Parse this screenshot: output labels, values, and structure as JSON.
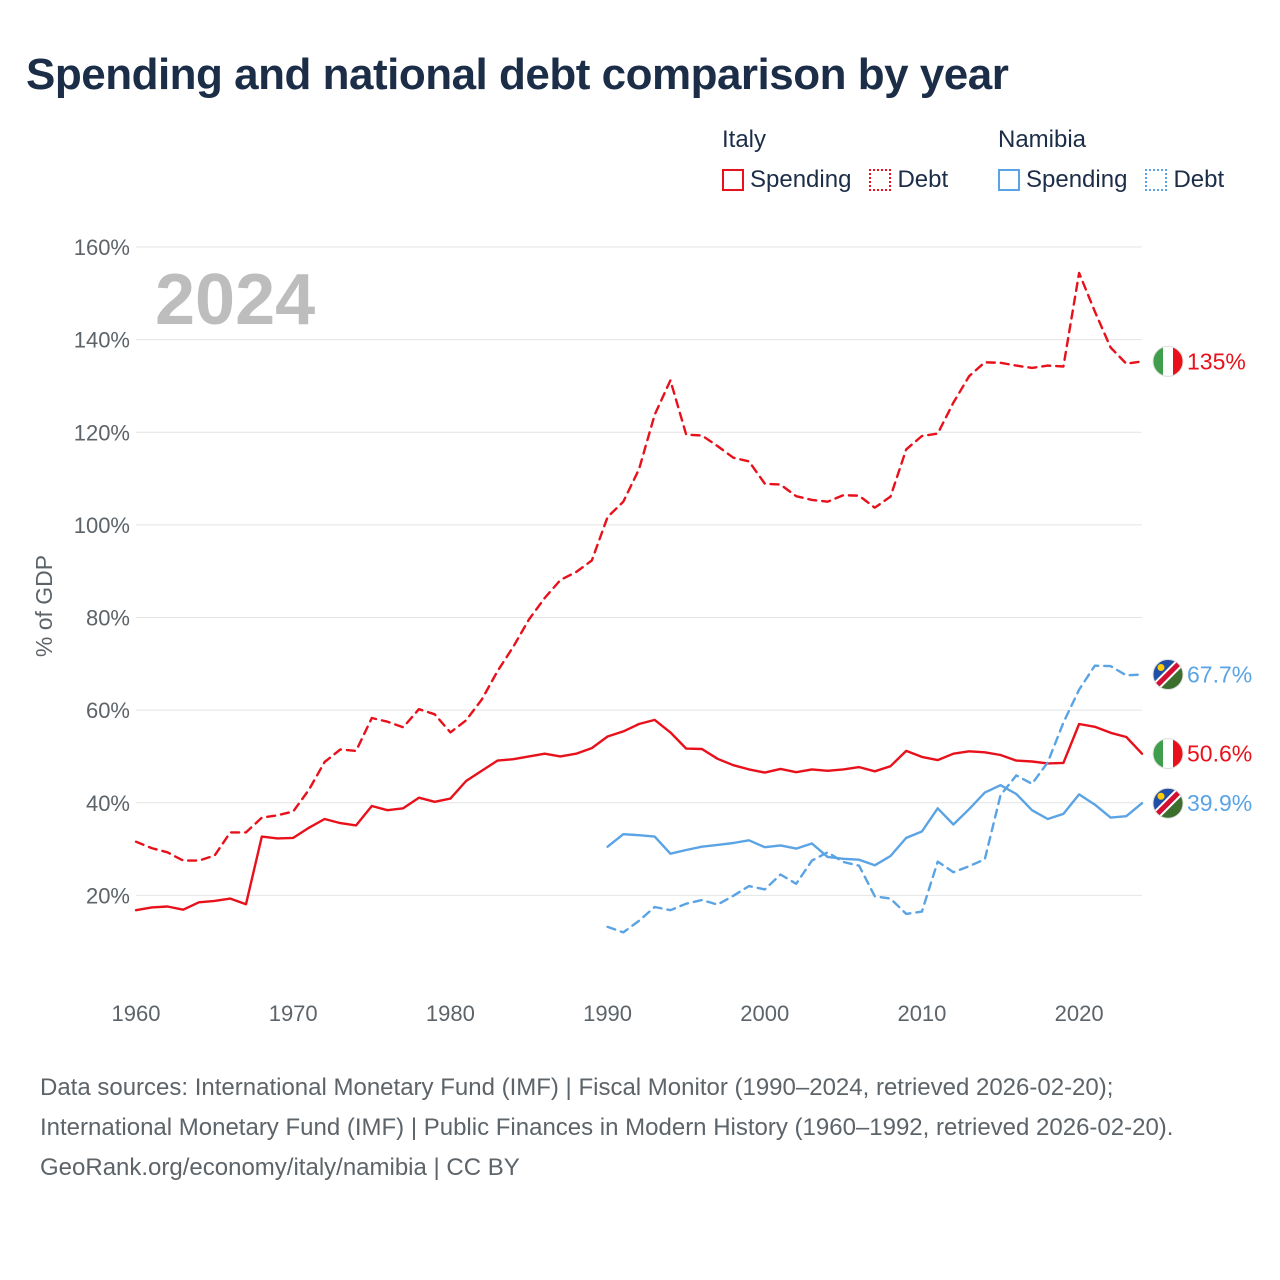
{
  "title": "Spending and national debt comparison by year",
  "legend": {
    "groups": [
      {
        "name": "Italy",
        "color": "#e8111b",
        "items": [
          {
            "label": "Spending",
            "style": "solid"
          },
          {
            "label": "Debt",
            "style": "dotted"
          }
        ]
      },
      {
        "name": "Namibia",
        "color": "#5aa3e4",
        "items": [
          {
            "label": "Spending",
            "style": "solid"
          },
          {
            "label": "Debt",
            "style": "dotted"
          }
        ]
      }
    ]
  },
  "year_label": "2024",
  "footer": {
    "sources": "Data sources: International Monetary Fund (IMF) | Fiscal Monitor (1990–2024, retrieved 2026-02-20); International Monetary Fund (IMF) | Public Finances in Modern History (1960–1992, retrieved 2026-02-20).",
    "credit": "GeoRank.org/economy/italy/namibia | CC BY"
  },
  "chart_data": {
    "type": "line",
    "title": "Spending and national debt comparison by year",
    "xlabel": "",
    "ylabel": "% of GDP",
    "xlim": [
      1960,
      2024
    ],
    "ylim": [
      0,
      160
    ],
    "x_ticks": [
      1960,
      1970,
      1980,
      1990,
      2000,
      2010,
      2020
    ],
    "y_ticks": [
      20,
      40,
      60,
      80,
      100,
      120,
      140,
      160
    ],
    "y_tick_labels": [
      "20%",
      "40%",
      "60%",
      "80%",
      "100%",
      "120%",
      "140%",
      "160%"
    ],
    "grid": true,
    "series": [
      {
        "name": "Italy Debt",
        "country": "Italy",
        "metric": "Debt",
        "color": "#e8111b",
        "dash": true,
        "end_label": "135%",
        "flag": "italy-flag-icon",
        "start_year": 1960,
        "values": [
          31.6,
          30.2,
          29.3,
          27.5,
          27.5,
          28.6,
          33.6,
          33.6,
          36.8,
          37.3,
          38.1,
          42.8,
          48.8,
          51.5,
          51.2,
          58.3,
          57.5,
          56.3,
          60.2,
          59.1,
          55.2,
          57.8,
          62.3,
          68.4,
          73.7,
          79.6,
          84.2,
          88.1,
          89.8,
          92.3,
          101.7,
          105.0,
          112.0,
          123.8,
          131.2,
          119.5,
          119.3,
          117.0,
          114.5,
          113.7,
          108.9,
          108.7,
          106.2,
          105.4,
          105.0,
          106.4,
          106.3,
          103.7,
          106.1,
          116.3,
          119.2,
          119.7,
          126.4,
          132.1,
          135.1,
          135.0,
          134.4,
          133.9,
          134.4,
          134.2,
          154.4,
          146.1,
          138.3,
          134.8,
          135.3
        ]
      },
      {
        "name": "Italy Spending",
        "country": "Italy",
        "metric": "Spending",
        "color": "#e8111b",
        "dash": false,
        "end_label": "50.6%",
        "flag": "italy-flag-icon",
        "start_year": 1960,
        "values": [
          16.8,
          17.4,
          17.6,
          16.9,
          18.5,
          18.8,
          19.3,
          18.1,
          32.7,
          32.3,
          32.4,
          34.6,
          36.5,
          35.6,
          35.1,
          39.3,
          38.4,
          38.8,
          41.1,
          40.2,
          40.9,
          44.7,
          46.9,
          49.1,
          49.4,
          50.0,
          50.6,
          50.0,
          50.6,
          51.8,
          54.3,
          55.4,
          57.0,
          57.9,
          55.2,
          51.7,
          51.6,
          49.5,
          48.1,
          47.2,
          46.5,
          47.3,
          46.6,
          47.2,
          46.9,
          47.2,
          47.7,
          46.8,
          47.9,
          51.2,
          49.9,
          49.2,
          50.6,
          51.1,
          50.9,
          50.3,
          49.1,
          48.9,
          48.5,
          48.6,
          57.0,
          56.4,
          55.1,
          54.2,
          50.6
        ]
      },
      {
        "name": "Namibia Debt",
        "country": "Namibia",
        "metric": "Debt",
        "color": "#5aa3e4",
        "dash": true,
        "end_label": "67.7%",
        "flag": "namibia-flag-icon",
        "start_year": 1990,
        "values": [
          13.2,
          12.0,
          14.5,
          17.5,
          16.8,
          18.2,
          19.0,
          18.0,
          19.9,
          22.0,
          21.3,
          24.5,
          22.5,
          27.5,
          29.3,
          27.2,
          26.4,
          19.8,
          19.3,
          16.0,
          16.5,
          27.3,
          25.0,
          26.3,
          27.8,
          41.6,
          45.9,
          44.1,
          48.7,
          57.3,
          64.4,
          69.6,
          69.5,
          67.5,
          67.7
        ]
      },
      {
        "name": "Namibia Spending",
        "country": "Namibia",
        "metric": "Spending",
        "color": "#5aa3e4",
        "dash": false,
        "end_label": "39.9%",
        "flag": "namibia-flag-icon",
        "start_year": 1990,
        "values": [
          30.5,
          33.2,
          33.0,
          32.7,
          29.0,
          29.8,
          30.5,
          30.9,
          31.3,
          31.9,
          30.4,
          30.8,
          30.1,
          31.2,
          28.3,
          27.9,
          27.7,
          26.5,
          28.5,
          32.4,
          33.8,
          38.8,
          35.3,
          38.6,
          42.2,
          43.8,
          41.9,
          38.4,
          36.5,
          37.6,
          41.8,
          39.6,
          36.8,
          37.1,
          39.9
        ]
      }
    ]
  }
}
